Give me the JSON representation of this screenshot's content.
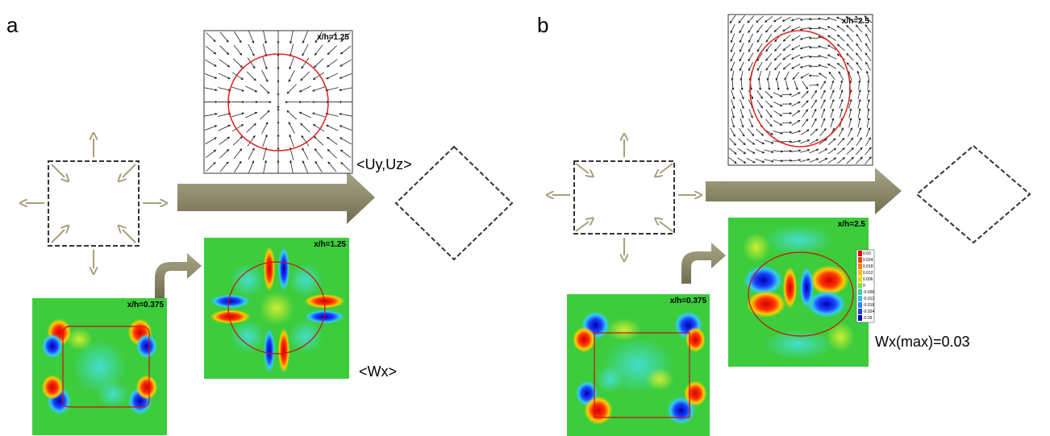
{
  "panels": [
    {
      "label": "a",
      "vector_plot": {
        "label": "x/h=1.25"
      },
      "vector_caption": "<Uy,Uz>",
      "input_plot": {
        "label": "x/h=0.375"
      },
      "output_plot": {
        "label": "x/h=1.25"
      },
      "output_caption": "<Wx>"
    },
    {
      "label": "b",
      "vector_plot": {
        "label": "x/h=2.5"
      },
      "input_plot": {
        "label": "x/h=0.375"
      },
      "output_plot": {
        "label": "x/h=2.5"
      },
      "colorbar": {
        "labels": [
          "0.03",
          "0.024",
          "0.018",
          "0.012",
          "0.006",
          "0",
          "-0.006",
          "-0.012",
          "-0.018",
          "-0.024",
          "-0.03"
        ]
      },
      "output_caption": "Wx(max)=0.03"
    }
  ]
}
